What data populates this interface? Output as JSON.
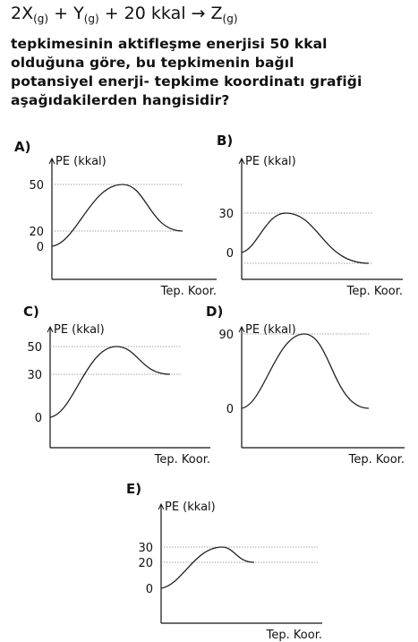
{
  "equation": {
    "coef": "2X",
    "x_sub": "(g)",
    "plus1": " + Y",
    "y_sub": "(g)",
    "energy": " + 20 kkal ",
    "arrow": "→",
    "product": " Z",
    "z_sub": "(g)"
  },
  "question": {
    "lines": [
      "tepkimesinin aktifleşme enerjisi 50 kkal",
      "olduğuna göre, bu tepkimenin bağıl",
      "potansiyel enerji- tepkime koordinatı grafiği",
      "aşağıdakilerden hangisidir?"
    ]
  },
  "chart_data": [
    {
      "option": "A)",
      "type": "line",
      "ylabel": "PE (kkal)",
      "xlabel": "Tep. Koor.",
      "ticks": [
        "50",
        "20",
        "0"
      ],
      "reactant": 0,
      "peak": 50,
      "product": 20
    },
    {
      "option": "B)",
      "type": "line",
      "ylabel": "PE (kkal)",
      "xlabel": "Tep. Koor.",
      "ticks": [
        "30",
        "0"
      ],
      "reactant": 0,
      "peak": 30,
      "product": -20
    },
    {
      "option": "C)",
      "type": "line",
      "ylabel": "PE (kkal)",
      "xlabel": "Tep. Koor.",
      "ticks": [
        "50",
        "30",
        "0"
      ],
      "reactant": 0,
      "peak": 50,
      "product": 30
    },
    {
      "option": "D)",
      "type": "line",
      "ylabel": "PE (kkal)",
      "xlabel": "Tep. Koor.",
      "ticks": [
        "90",
        "0"
      ],
      "reactant": 0,
      "peak": 90,
      "product": 0
    },
    {
      "option": "E)",
      "type": "line",
      "ylabel": "PE (kkal)",
      "xlabel": "Tep. Koor.",
      "ticks": [
        "30",
        "20",
        "0"
      ],
      "reactant": 0,
      "peak": 30,
      "product": 20
    }
  ]
}
